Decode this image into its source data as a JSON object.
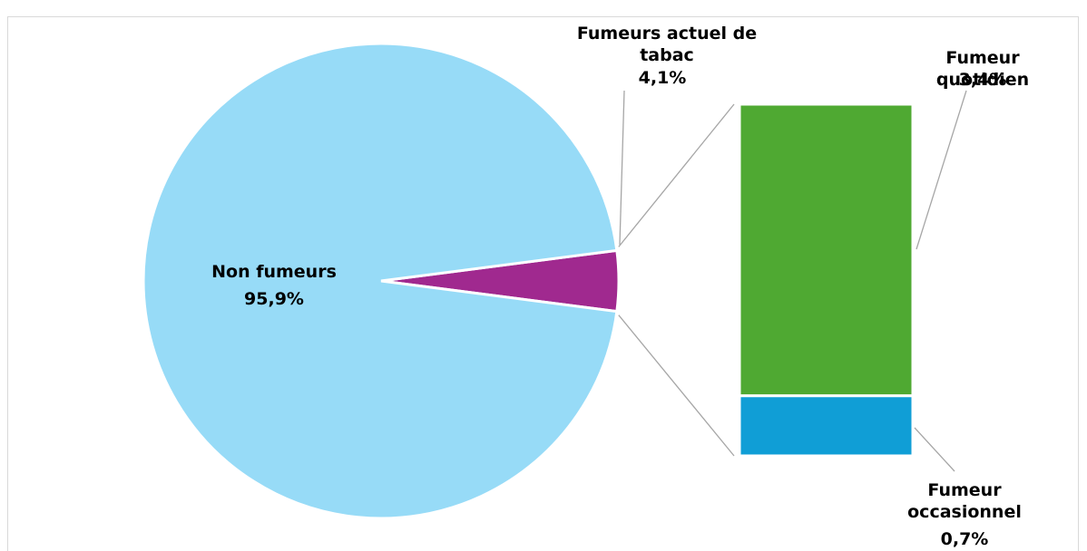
{
  "chart_data": {
    "type": "pie-of-bar",
    "categories": [
      "Non fumeurs",
      "Fumeurs actuel de tabac"
    ],
    "values": [
      95.9,
      4.1
    ],
    "value_labels": [
      "95,9%",
      "4,1%"
    ],
    "colors": [
      "#97dbf7",
      "#a0298f"
    ],
    "breakdown": {
      "categories": [
        "Fumeur quotidien",
        "Fumeur occasionnel"
      ],
      "values": [
        3.4,
        0.7
      ],
      "value_labels": [
        "3,4%",
        "0,7%"
      ],
      "colors": [
        "#4fa932",
        "#109ed6"
      ]
    }
  }
}
